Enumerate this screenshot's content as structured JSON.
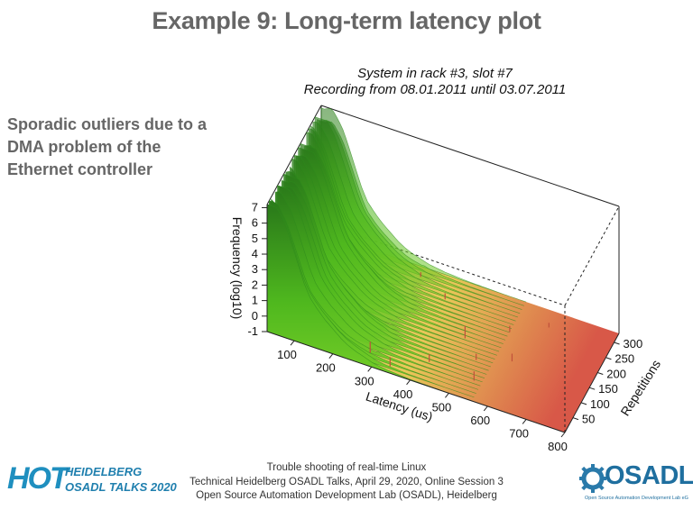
{
  "slide": {
    "title": "Example 9: Long-term latency plot",
    "note_lines": [
      "Sporadic outliers due to a",
      "DMA problem of the",
      "Ethernet controller"
    ]
  },
  "chart_data": {
    "type": "surface-3d",
    "title_lines": [
      "System in rack #3, slot #7",
      "Recording from 08.01.2011 until 03.07.2011"
    ],
    "xlabel": "Latency (us)",
    "ylabel": "Repetitions",
    "zlabel": "Frequency (log10)",
    "x_ticks": [
      100,
      200,
      300,
      400,
      500,
      600,
      700,
      800
    ],
    "y_ticks": [
      50,
      100,
      150,
      200,
      250,
      300
    ],
    "z_ticks": [
      -1,
      0,
      1,
      2,
      3,
      4,
      5,
      6,
      7
    ],
    "xlim": [
      30,
      800
    ],
    "ylim": [
      1,
      330
    ],
    "zlim": [
      -1,
      7.2
    ],
    "profile": {
      "x": [
        30,
        45,
        55,
        65,
        75,
        85,
        95,
        105,
        115,
        125,
        140,
        160,
        180,
        200,
        220,
        240,
        260,
        280,
        300,
        340,
        400,
        500
      ],
      "z": [
        7.0,
        7.2,
        7.0,
        6.6,
        6.2,
        5.6,
        4.9,
        4.2,
        3.5,
        2.8,
        2.0,
        1.4,
        0.9,
        0.5,
        0.1,
        -0.2,
        -0.4,
        -0.55,
        -0.7,
        -0.85,
        -0.95,
        -1.0
      ]
    },
    "outliers": [
      {
        "x": 280,
        "y": 40,
        "z": -0.3
      },
      {
        "x": 340,
        "y": 20,
        "z": -0.4
      },
      {
        "x": 420,
        "y": 70,
        "z": -0.5
      },
      {
        "x": 470,
        "y": 170,
        "z": -0.2
      },
      {
        "x": 520,
        "y": 120,
        "z": -0.6
      },
      {
        "x": 540,
        "y": 60,
        "z": -0.4
      },
      {
        "x": 560,
        "y": 230,
        "z": -0.6
      },
      {
        "x": 600,
        "y": 150,
        "z": -0.5
      },
      {
        "x": 640,
        "y": 280,
        "z": -0.7
      },
      {
        "x": 380,
        "y": 260,
        "z": -0.6
      },
      {
        "x": 300,
        "y": 300,
        "z": -0.7
      }
    ],
    "colors": {
      "base_low": "#b8d66a",
      "base_mid": "#e8c858",
      "base_high": "#d85848",
      "surface_dark": "#2a7a1a",
      "surface_light": "#66cc22"
    }
  },
  "footer": {
    "lines": [
      "Trouble shooting of real-time Linux",
      "Technical Heidelberg OSADL Talks, April 29, 2020, Online Session 3",
      "Open Source Automation Development Lab (OSADL), Heidelberg"
    ]
  },
  "logos": {
    "hot_big": "HOT",
    "hot_line1": "HEIDELBERG",
    "hot_line2": "OSADL TALKS 2020",
    "osadl_name": "OSADL",
    "osadl_sub": "Open Source Automation Development Lab eG"
  }
}
